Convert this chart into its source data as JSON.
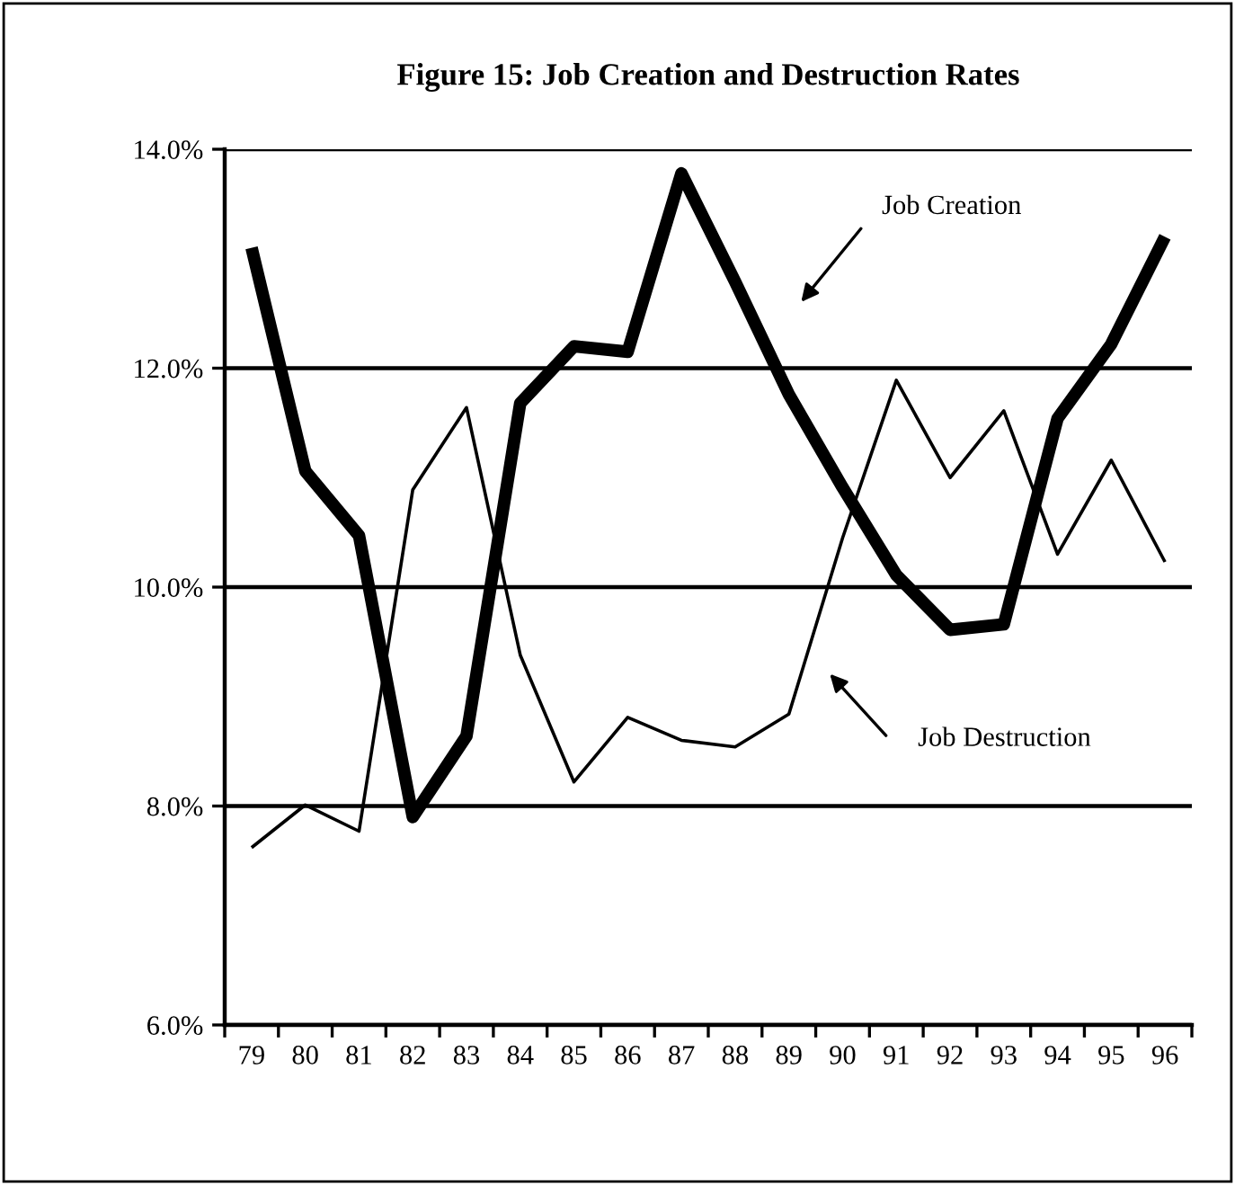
{
  "chart_data": {
    "type": "line",
    "title": "Figure 15: Job Creation and Destruction Rates",
    "categories": [
      "79",
      "80",
      "81",
      "82",
      "83",
      "84",
      "85",
      "86",
      "87",
      "88",
      "89",
      "90",
      "91",
      "92",
      "93",
      "94",
      "95",
      "96"
    ],
    "series": [
      {
        "color": "#000000",
        "values": [
          13.1,
          11.06,
          10.47,
          7.9,
          8.64,
          11.68,
          12.2,
          12.15,
          13.78,
          12.79,
          11.76,
          10.91,
          10.11,
          9.61,
          9.66,
          11.54,
          12.22,
          13.2
        ]
      },
      {
        "color": "#000000",
        "values": [
          7.62,
          8.01,
          7.77,
          10.89,
          11.64,
          9.38,
          8.22,
          8.81,
          8.6,
          8.54,
          8.84,
          10.45,
          11.89,
          11.0,
          11.61,
          10.3,
          11.16,
          10.23
        ]
      }
    ],
    "annotations": [
      "Job Creation",
      "Job Destruction"
    ],
    "ylim": [
      6,
      14
    ],
    "yticks": [
      {
        "value": 6,
        "label": "6.0%"
      },
      {
        "value": 8,
        "label": "8.0%"
      },
      {
        "value": 10,
        "label": "10.0%"
      },
      {
        "value": 12,
        "label": "12.0%"
      },
      {
        "value": 14,
        "label": "14.0%"
      }
    ],
    "grid": "y",
    "marker": "none",
    "line_style": "solid"
  }
}
